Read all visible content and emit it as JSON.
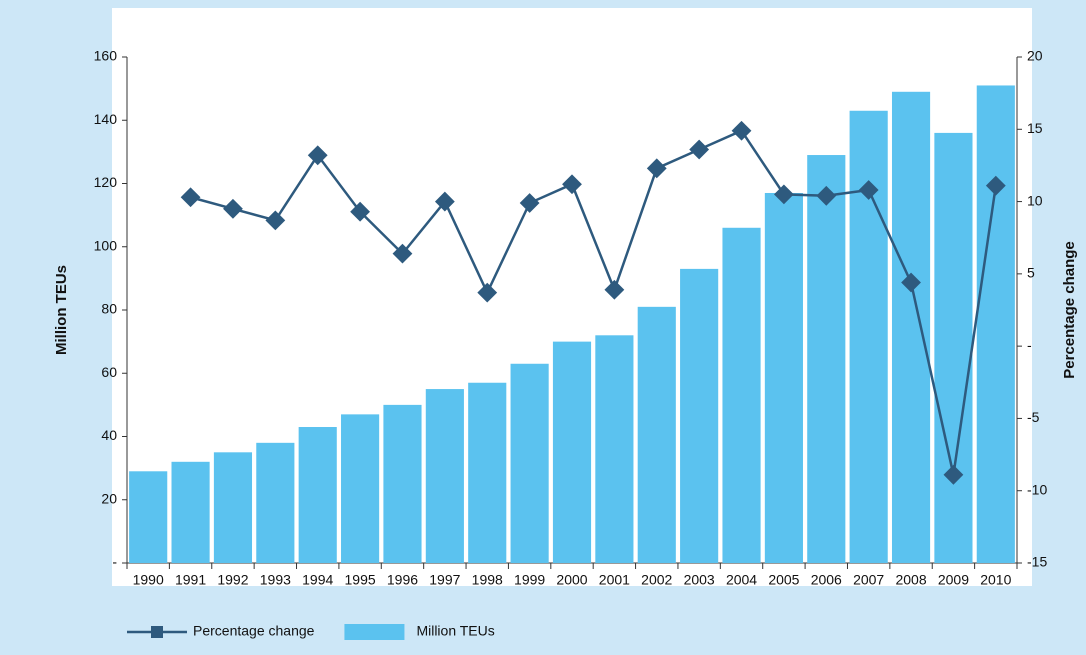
{
  "chart_data": {
    "type": "bar-line",
    "y_label": "Million TEUs",
    "y2_label": "Percentage change",
    "categories": [
      "1990",
      "1991",
      "1992",
      "1993",
      "1994",
      "1995",
      "1996",
      "1997",
      "1998",
      "1999",
      "2000",
      "2001",
      "2002",
      "2003",
      "2004",
      "2005",
      "2006",
      "2007",
      "2008",
      "2009",
      "2010"
    ],
    "series": [
      {
        "name": "Percentage change",
        "type": "line",
        "axis": "y2",
        "color": "#2e5a7e",
        "values": [
          null,
          10.3,
          9.5,
          8.7,
          13.2,
          9.3,
          6.4,
          10.0,
          3.7,
          9.9,
          11.2,
          3.9,
          12.3,
          13.6,
          14.9,
          10.5,
          10.4,
          10.8,
          4.4,
          -8.9,
          11.1
        ]
      },
      {
        "name": "Million TEUs",
        "type": "bar",
        "axis": "y",
        "color": "#5bc2ef",
        "values": [
          29,
          32,
          35,
          38,
          43,
          47,
          50,
          55,
          57,
          63,
          70,
          72,
          81,
          93,
          106,
          117,
          129,
          143,
          149,
          136,
          151
        ]
      }
    ],
    "ylim": [
      0,
      160
    ],
    "yticks": [
      {
        "value": 0,
        "label": "-"
      },
      20,
      40,
      60,
      80,
      100,
      120,
      140,
      160
    ],
    "y2lim": [
      -15,
      20
    ],
    "y2ticks": [
      -15,
      -10,
      -5,
      {
        "value": 0,
        "label": "-"
      },
      5,
      10,
      15,
      20
    ],
    "legend": "bottom-left"
  }
}
